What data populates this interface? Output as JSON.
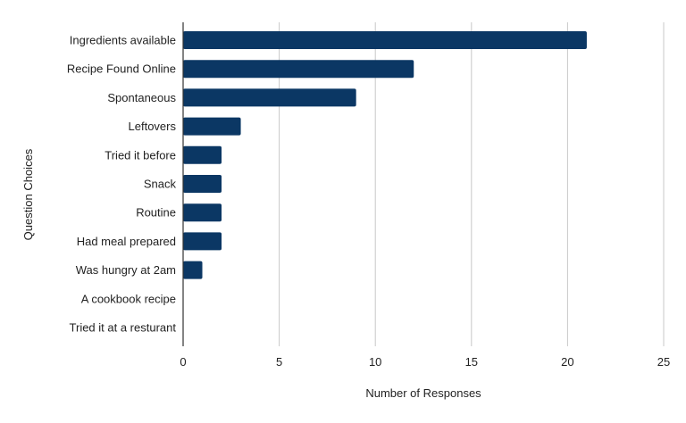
{
  "chart_data": {
    "type": "bar",
    "orientation": "horizontal",
    "categories": [
      "Ingredients available",
      "Recipe Found Online",
      "Spontaneous",
      "Leftovers",
      "Tried it before",
      "Snack",
      "Routine",
      "Had meal prepared",
      "Was hungry at 2am",
      "A cookbook recipe",
      "Tried it at a resturant"
    ],
    "values": [
      21,
      12,
      9,
      3,
      2,
      2,
      2,
      2,
      1,
      0,
      0
    ],
    "xlabel": "Number of Responses",
    "ylabel": "Question Choices",
    "xlim": [
      0,
      25
    ],
    "xticks": [
      0,
      5,
      10,
      15,
      20,
      25
    ],
    "grid": "vertical",
    "bar_color": "#0b3764",
    "grid_color": "#c8c8c8",
    "axis_color": "#333333"
  }
}
